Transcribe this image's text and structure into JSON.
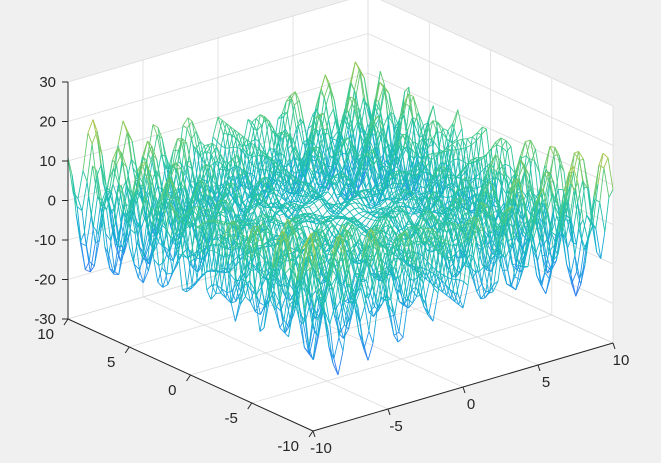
{
  "chart_data": {
    "type": "surface-mesh",
    "title": "",
    "xlabel": "",
    "ylabel": "",
    "zlabel": "",
    "x_range": [
      -10,
      10
    ],
    "y_range": [
      -10,
      10
    ],
    "z_range": [
      -30,
      30
    ],
    "x_ticks": [
      -10,
      -5,
      0,
      5,
      10
    ],
    "y_ticks": [
      -10,
      -5,
      0,
      5,
      10
    ],
    "z_ticks": [
      -30,
      -20,
      -10,
      0,
      10,
      20,
      30
    ],
    "x_tick_labels": [
      "-10",
      "-5",
      "0",
      "5",
      "10"
    ],
    "y_tick_labels": [
      "-10",
      "-5",
      "0",
      "5",
      "10"
    ],
    "z_tick_labels": [
      "-30",
      "-20",
      "-10",
      "0",
      "10",
      "20",
      "30"
    ],
    "view": {
      "azimuth": -37.5,
      "elevation": 30
    },
    "grid": true,
    "colormap": "parula",
    "grid_resolution": 60,
    "surface_approx": "z ≈ (x·sin(3y) + y·cos(3x)), oscillating with amplitude growing toward the corners"
  },
  "colors": {
    "figure_background": "#f0f0f0",
    "axes_background": "#ffffff",
    "axis_line": "#262626",
    "grid_line": "#dcdcdc",
    "tick_label": "#262626"
  }
}
